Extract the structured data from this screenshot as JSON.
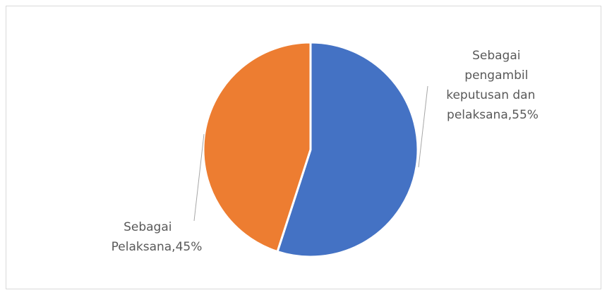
{
  "chart_data": {
    "type": "pie",
    "slices": [
      {
        "label": "Sebagai pengambil keputusan dan pelaksana",
        "value": 55,
        "display": "55%",
        "color": "#4472c4"
      },
      {
        "label": "Sebagai Pelaksana",
        "value": 45,
        "display": "45%",
        "color": "#ed7d31"
      }
    ],
    "data_labels": [
      {
        "lines": [
          "Sebagai",
          "pengambil",
          "keputusan dan",
          "pelaksana,55%"
        ]
      },
      {
        "lines": [
          "Sebagai",
          "Pelaksana,45%"
        ]
      }
    ],
    "title": "",
    "start_angle_deg": 0,
    "direction": "clockwise"
  }
}
